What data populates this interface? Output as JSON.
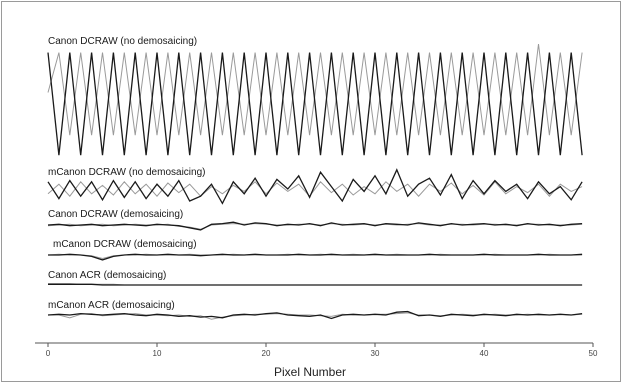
{
  "chart_data": {
    "type": "line",
    "title": "",
    "xlabel": "Pixel Number",
    "ylabel": "",
    "xlim": [
      0,
      50
    ],
    "x_ticks": [
      0,
      10,
      20,
      30,
      40,
      50
    ],
    "grid": false,
    "x": [
      0,
      1,
      2,
      3,
      4,
      5,
      6,
      7,
      8,
      9,
      10,
      11,
      12,
      13,
      14,
      15,
      16,
      17,
      18,
      19,
      20,
      21,
      22,
      23,
      24,
      25,
      26,
      27,
      28,
      29,
      30,
      31,
      32,
      33,
      34,
      35,
      36,
      37,
      38,
      39,
      40,
      41,
      42,
      43,
      44,
      45,
      46,
      47,
      48,
      49
    ],
    "series_colors": {
      "dark": "#1a1a1a",
      "light": "#9a9a9a"
    },
    "panels": [
      {
        "label": "Canon DCRAW (no demosaicing)",
        "series": [
          {
            "color": "dark",
            "values": [
              0.85,
              -0.95,
              0.85,
              -0.95,
              0.85,
              -0.95,
              0.85,
              -0.95,
              0.85,
              -0.95,
              0.85,
              -0.95,
              0.85,
              -0.95,
              0.85,
              -0.95,
              0.85,
              -0.95,
              0.85,
              -0.95,
              0.85,
              -0.95,
              0.85,
              -0.95,
              0.85,
              -0.95,
              0.85,
              -0.95,
              0.85,
              -0.95,
              0.85,
              -0.95,
              0.85,
              -0.95,
              0.85,
              -0.95,
              0.85,
              -0.95,
              0.85,
              -0.95,
              0.85,
              -0.95,
              0.85,
              -0.95,
              0.85,
              -0.95,
              0.85,
              -0.95,
              0.85,
              -0.95
            ]
          },
          {
            "color": "light",
            "values": [
              0.15,
              0.85,
              -0.6,
              0.85,
              -0.6,
              0.85,
              -0.6,
              0.85,
              -0.6,
              0.85,
              -0.6,
              0.85,
              -0.6,
              0.85,
              -0.6,
              0.85,
              -0.6,
              0.85,
              -0.6,
              0.85,
              -0.6,
              0.85,
              -0.6,
              0.85,
              -0.6,
              0.85,
              -0.6,
              0.85,
              -0.6,
              0.85,
              -0.6,
              0.85,
              -0.6,
              0.85,
              -0.6,
              0.85,
              -0.6,
              0.85,
              -0.6,
              0.85,
              -0.6,
              0.85,
              -0.6,
              0.85,
              -0.6,
              1.0,
              -0.6,
              0.85,
              -0.6,
              0.85
            ]
          }
        ]
      },
      {
        "label": "mCanon DCRAW (no demosaicing)",
        "series": [
          {
            "color": "dark",
            "values": [
              0.3,
              -0.4,
              0.35,
              -0.3,
              0.3,
              -0.45,
              0.35,
              -0.35,
              0.3,
              -0.4,
              0.2,
              -0.3,
              0.35,
              -0.5,
              -0.3,
              0.2,
              -0.6,
              0.3,
              -0.2,
              0.45,
              -0.3,
              0.4,
              0.0,
              0.55,
              -0.35,
              0.7,
              0.1,
              -0.5,
              0.4,
              -0.1,
              0.55,
              -0.2,
              0.8,
              -0.3,
              0.2,
              0.45,
              -0.25,
              0.6,
              -0.4,
              0.35,
              -0.2,
              0.35,
              -0.1,
              0.2,
              -0.4,
              0.3,
              -0.2,
              0.1,
              -0.45,
              0.3
            ]
          },
          {
            "color": "light",
            "values": [
              -0.2,
              0.2,
              -0.3,
              0.3,
              -0.2,
              0.15,
              -0.25,
              0.3,
              -0.2,
              0.2,
              -0.3,
              0.25,
              -0.15,
              0.2,
              -0.3,
              0.1,
              -0.2,
              0.15,
              -0.1,
              0.3,
              -0.2,
              0.25,
              -0.1,
              0.2,
              -0.3,
              0.3,
              -0.15,
              0.2,
              -0.25,
              0.1,
              -0.2,
              0.3,
              -0.1,
              0.2,
              -0.3,
              0.2,
              -0.1,
              0.25,
              -0.2,
              0.15,
              -0.25,
              0.3,
              -0.2,
              0.1,
              -0.15,
              0.2,
              -0.3,
              0.2,
              -0.1,
              0.1
            ]
          }
        ]
      },
      {
        "label": "Canon DCRAW (demosaicing)",
        "series": [
          {
            "color": "dark",
            "values": [
              0.0,
              0.05,
              -0.05,
              0.0,
              0.05,
              -0.05,
              0.0,
              0.05,
              0.0,
              -0.05,
              0.05,
              0.0,
              -0.05,
              -0.2,
              -0.35,
              0.05,
              0.1,
              0.2,
              0.0,
              0.15,
              0.1,
              -0.05,
              0.05,
              0.0,
              0.1,
              -0.05,
              0.15,
              0.0,
              0.05,
              0.1,
              -0.05,
              0.1,
              0.05,
              0.0,
              0.15,
              0.05,
              -0.05,
              0.1,
              0.0,
              0.05,
              0.1,
              0.0,
              0.05,
              -0.05,
              0.1,
              0.0,
              0.05,
              -0.05,
              0.05,
              0.1
            ]
          },
          {
            "color": "light",
            "values": [
              -0.05,
              0.0,
              0.05,
              -0.05,
              0.0,
              0.05,
              -0.05,
              0.0,
              0.05,
              0.0,
              0.0,
              0.05,
              -0.1,
              -0.15,
              -0.3,
              0.0,
              0.05,
              0.1,
              0.05,
              0.1,
              0.05,
              0.0,
              0.0,
              0.05,
              0.05,
              0.0,
              0.1,
              0.05,
              0.0,
              0.05,
              0.0,
              0.05,
              0.0,
              0.05,
              0.1,
              0.0,
              0.0,
              0.05,
              0.05,
              0.0,
              0.05,
              0.05,
              0.0,
              0.0,
              0.05,
              0.05,
              0.0,
              0.0,
              0.0,
              0.05
            ]
          }
        ]
      },
      {
        "label": "mCanon DCRAW (demosaicing)",
        "series": [
          {
            "color": "dark",
            "values": [
              0.0,
              0.0,
              0.05,
              0.0,
              -0.1,
              -0.35,
              -0.1,
              0.0,
              0.05,
              0.0,
              0.0,
              0.05,
              0.0,
              0.0,
              -0.05,
              0.0,
              0.05,
              0.0,
              0.0,
              0.05,
              0.0,
              0.0,
              0.0,
              0.05,
              0.0,
              0.0,
              0.05,
              0.0,
              0.0,
              0.0,
              0.05,
              0.0,
              0.0,
              0.0,
              0.0,
              0.05,
              0.0,
              0.0,
              0.0,
              0.0,
              0.05,
              0.0,
              0.0,
              0.0,
              0.0,
              0.05,
              0.0,
              0.0,
              0.0,
              0.05
            ]
          },
          {
            "color": "light",
            "values": [
              0.0,
              0.05,
              0.0,
              0.0,
              -0.05,
              -0.25,
              -0.05,
              0.0,
              0.0,
              0.05,
              0.0,
              0.0,
              0.0,
              0.05,
              0.0,
              0.0,
              0.0,
              0.05,
              0.0,
              0.0,
              0.0,
              0.0,
              0.05,
              0.0,
              0.0,
              0.05,
              0.0,
              0.0,
              0.05,
              0.0,
              0.0,
              0.0,
              0.05,
              0.0,
              0.0,
              0.0,
              0.05,
              0.0,
              0.0,
              0.0,
              0.0,
              0.05,
              0.0,
              0.0,
              0.0,
              0.0,
              0.05,
              0.0,
              0.0,
              0.0
            ]
          }
        ]
      },
      {
        "label": "Canon ACR (demosaicing)",
        "series": [
          {
            "color": "dark",
            "values": [
              0.05,
              0.05,
              0.05,
              0.05,
              0.05,
              0.0,
              0.0,
              0.0,
              0.0,
              0.0,
              0.0,
              0.0,
              0.0,
              0.0,
              0.0,
              0.0,
              0.0,
              0.0,
              0.0,
              0.0,
              0.0,
              0.0,
              0.0,
              0.0,
              0.0,
              0.0,
              0.0,
              0.0,
              0.0,
              0.0,
              0.0,
              0.0,
              0.0,
              0.0,
              0.0,
              0.0,
              0.0,
              0.0,
              0.0,
              0.0,
              0.0,
              0.0,
              0.0,
              0.0,
              0.0,
              0.0,
              0.0,
              0.0,
              0.0,
              0.0
            ]
          },
          {
            "color": "light",
            "values": [
              0.1,
              0.1,
              0.1,
              0.05,
              0.05,
              0.05,
              0.05,
              0.0,
              0.0,
              0.0,
              0.0,
              0.0,
              0.0,
              0.0,
              0.0,
              0.0,
              0.0,
              0.0,
              0.0,
              0.0,
              0.0,
              0.0,
              0.0,
              0.0,
              0.0,
              0.0,
              0.0,
              0.0,
              0.0,
              0.0,
              0.0,
              0.0,
              0.0,
              0.0,
              0.0,
              0.0,
              0.0,
              0.0,
              0.0,
              0.0,
              0.0,
              0.0,
              0.0,
              0.0,
              0.0,
              0.0,
              0.0,
              0.0,
              0.0,
              0.0
            ]
          }
        ]
      },
      {
        "label": "mCanon ACR (demosaicing)",
        "series": [
          {
            "color": "dark",
            "values": [
              0.0,
              0.05,
              0.0,
              0.1,
              0.05,
              0.0,
              0.05,
              0.1,
              0.0,
              -0.05,
              0.05,
              0.0,
              -0.1,
              -0.05,
              -0.15,
              -0.1,
              -0.2,
              0.0,
              0.05,
              0.0,
              0.1,
              0.15,
              0.0,
              -0.05,
              -0.1,
              0.0,
              -0.25,
              0.0,
              0.05,
              0.0,
              0.05,
              0.0,
              0.2,
              0.25,
              -0.05,
              0.0,
              -0.1,
              0.05,
              0.0,
              -0.05,
              0.05,
              0.0,
              -0.05,
              0.05,
              0.0,
              0.05,
              0.0,
              0.05,
              0.0,
              0.1
            ]
          },
          {
            "color": "light",
            "values": [
              0.0,
              0.0,
              -0.2,
              0.05,
              0.1,
              -0.05,
              0.0,
              0.05,
              0.1,
              0.0,
              0.0,
              -0.05,
              0.0,
              -0.1,
              -0.05,
              -0.3,
              -0.15,
              -0.05,
              0.0,
              0.05,
              0.05,
              0.1,
              0.05,
              0.0,
              0.0,
              -0.05,
              -0.1,
              0.05,
              0.0,
              0.0,
              0.05,
              0.05,
              0.1,
              0.15,
              0.0,
              0.0,
              -0.05,
              0.0,
              0.05,
              0.0,
              0.0,
              0.05,
              0.0,
              0.0,
              0.05,
              0.0,
              0.0,
              0.05,
              0.0,
              0.05
            ]
          }
        ]
      }
    ]
  }
}
